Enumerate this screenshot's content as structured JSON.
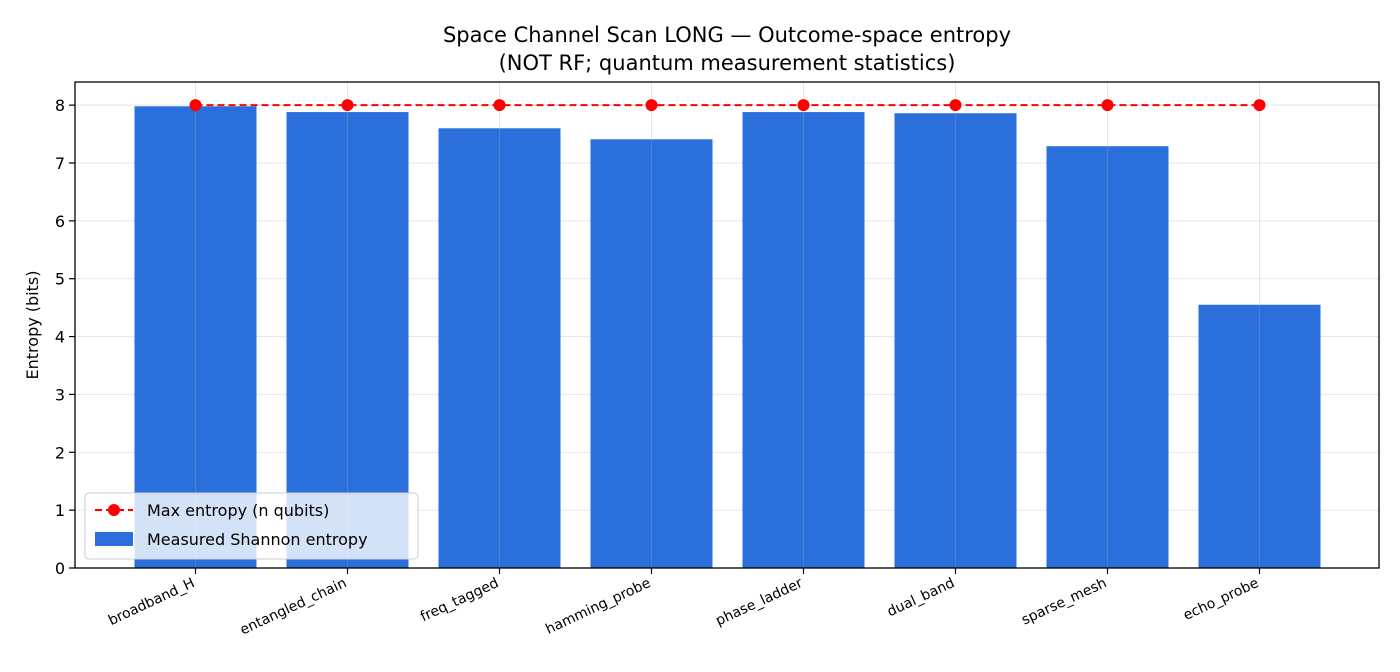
{
  "chart_data": {
    "type": "bar",
    "title": "Space Channel Scan LONG — Outcome-space entropy",
    "subtitle": "(NOT RF; quantum measurement statistics)",
    "xlabel": "",
    "ylabel": "Entropy (bits)",
    "ylim": [
      0,
      8.4
    ],
    "yticks": [
      0,
      1,
      2,
      3,
      4,
      5,
      6,
      7,
      8
    ],
    "grid": true,
    "legend_position": "lower-left",
    "categories": [
      "broadband_H",
      "entangled_chain",
      "freq_tagged",
      "hamming_probe",
      "phase_ladder",
      "dual_band",
      "sparse_mesh",
      "echo_probe"
    ],
    "series": [
      {
        "name": "Measured Shannon entropy",
        "kind": "bar",
        "color": "#2a6fdb",
        "values": [
          7.98,
          7.88,
          7.6,
          7.41,
          7.88,
          7.86,
          7.29,
          4.55
        ]
      },
      {
        "name": "Max entropy (n qubits)",
        "kind": "line",
        "style": "dashed",
        "marker": "circle",
        "color": "#ff0000",
        "values": [
          8,
          8,
          8,
          8,
          8,
          8,
          8,
          8
        ]
      }
    ]
  }
}
